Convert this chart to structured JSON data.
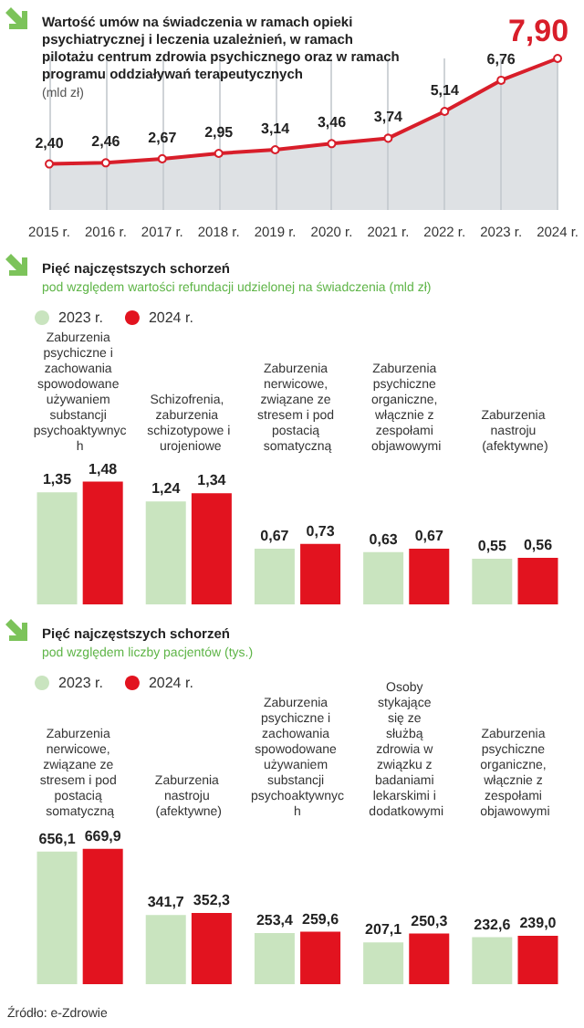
{
  "chart_data": [
    {
      "type": "area",
      "title": "Wartość umów na świadczenia w ramach opieki psychiatrycznej i leczenia uzależnień, w ramach pilotażu centrum zdrowia psychicznego oraz w ramach programu oddziaływań terapeutycznych",
      "subtitle": "(mld zł)",
      "categories": [
        "2015 r.",
        "2016 r.",
        "2017 r.",
        "2018 r.",
        "2019 r.",
        "2020 r.",
        "2021 r.",
        "2022 r.",
        "2023 r.",
        "2024 r."
      ],
      "series": [
        {
          "color": "#d81e2a",
          "values": [
            2.4,
            2.46,
            2.67,
            2.95,
            3.14,
            3.46,
            3.74,
            5.14,
            6.76,
            7.9
          ],
          "value_labels": [
            "2,40",
            "2,46",
            "2,67",
            "2,95",
            "3,14",
            "3,46",
            "3,74",
            "5,14",
            "6,76",
            "7,90"
          ]
        }
      ],
      "grid": "x",
      "marker": "circle"
    },
    {
      "type": "bar",
      "title": "Pięć najczęstszych schorzeń",
      "subtitle": "pod względem wartości refundacji udzielonej na świadczenia (mld zł)",
      "categories": [
        "Zaburzenia psychiczne i zachowania spowodowane używaniem substancji psychoaktywnych",
        "Schizofrenia, zaburzenia schizotypowe i urojeniowe",
        "Zaburzenia nerwicowe, związane ze stresem i pod postacią somatyczną",
        "Zaburzenia psychiczne organiczne, włącznie z zespołami objawowymi",
        "Zaburzenia nastroju (afektywne)"
      ],
      "series": [
        {
          "name": "2023 r.",
          "color": "#c9e4bf",
          "values": [
            1.35,
            1.24,
            0.67,
            0.63,
            0.55
          ],
          "value_labels": [
            "1,35",
            "1,24",
            "0,67",
            "0,63",
            "0,55"
          ]
        },
        {
          "name": "2024 r.",
          "color": "#e2131f",
          "values": [
            1.48,
            1.34,
            0.73,
            0.67,
            0.56
          ],
          "value_labels": [
            "1,48",
            "1,34",
            "0,73",
            "0,67",
            "0,56"
          ]
        }
      ],
      "legend": "top left"
    },
    {
      "type": "bar",
      "title": "Pięć najczęstszych schorzeń",
      "subtitle": "pod względem liczby pacjentów (tys.)",
      "categories": [
        "Zaburzenia nerwicowe, związane ze stresem i pod postacią somatyczną",
        "Zaburzenia nastroju (afektywne)",
        "Zaburzenia psychiczne i zachowania spowodowane używaniem substancji psychoaktywnych",
        "Osoby stykające się ze służbą zdrowia w związku z badaniami lekarskimi i dodatkowymi",
        "Zaburzenia psychiczne organiczne, włącznie z zespołami objawowymi"
      ],
      "series": [
        {
          "name": "2023 r.",
          "color": "#c9e4bf",
          "values": [
            656.1,
            341.7,
            253.4,
            207.1,
            232.6
          ],
          "value_labels": [
            "656,1",
            "341,7",
            "253,4",
            "207,1",
            "232,6"
          ]
        },
        {
          "name": "2024 r.",
          "color": "#e2131f",
          "values": [
            669.9,
            352.3,
            259.6,
            250.3,
            239.0
          ],
          "value_labels": [
            "669,9",
            "352,3",
            "259,6",
            "250,3",
            "239,0"
          ]
        }
      ],
      "legend": "top left",
      "annotations": [
        "Źródło: e-Zdrowie"
      ]
    }
  ]
}
